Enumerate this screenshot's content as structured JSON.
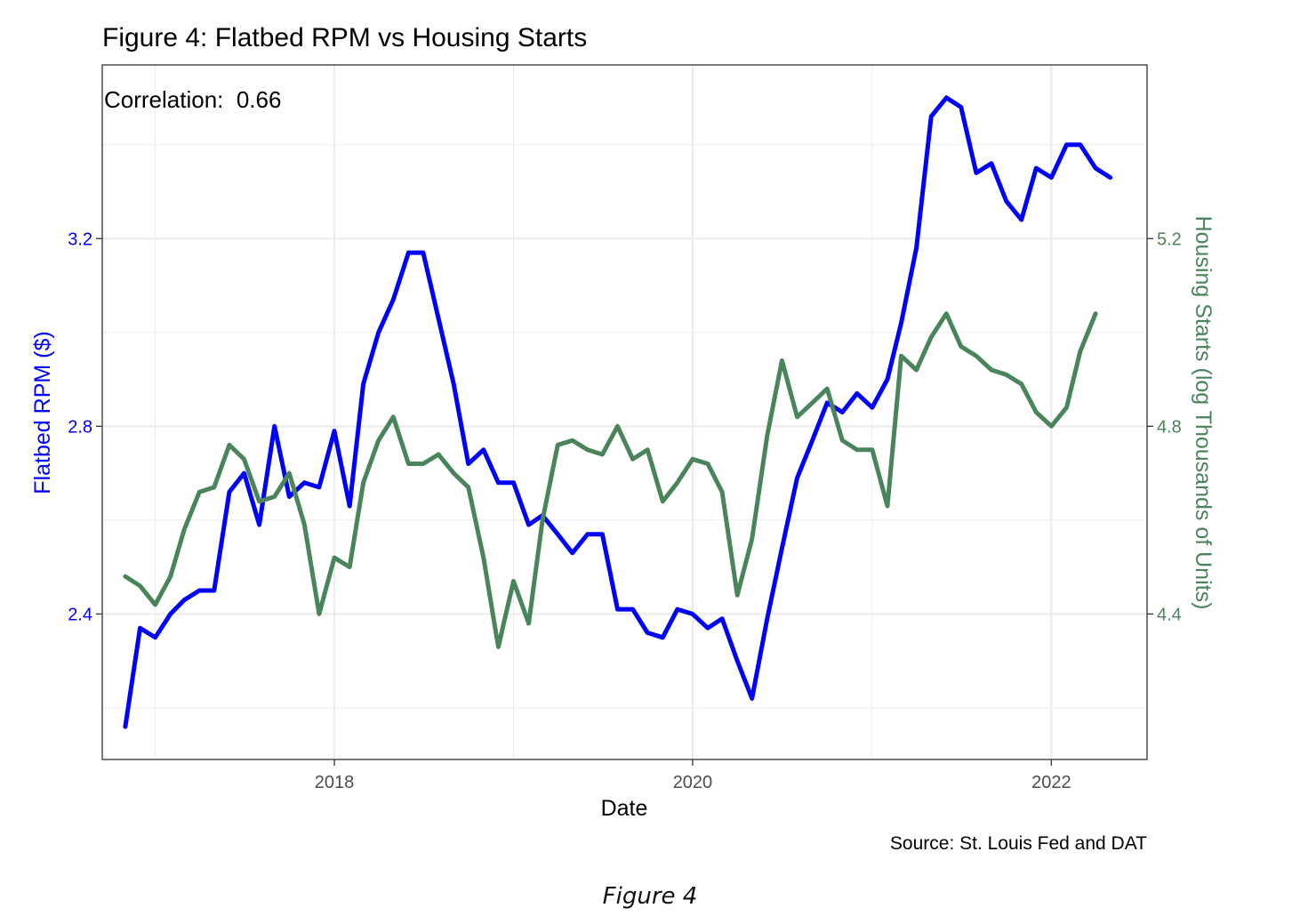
{
  "chart_data": {
    "type": "line",
    "title": "Figure 4: Flatbed RPM vs Housing Starts",
    "annotation": "Correlation:  0.66",
    "xlabel": "Date",
    "ylabel_left": "Flatbed RPM ($)",
    "ylabel_right": "Housing Starts (log Thousands of Units)",
    "source": "Source: St. Louis Fed and DAT",
    "caption": "Figure 4",
    "x_range": [
      "2016-09-15",
      "2022-07-15"
    ],
    "y_left_range": [
      2.09,
      3.57
    ],
    "y_right_range": [
      4.09,
      5.57
    ],
    "x_ticks": [
      {
        "date": "2018-01-01",
        "label": "2018"
      },
      {
        "date": "2020-01-01",
        "label": "2020"
      },
      {
        "date": "2022-01-01",
        "label": "2022"
      }
    ],
    "y_left_ticks": [
      2.4,
      2.8,
      3.2
    ],
    "y_right_ticks": [
      4.4,
      4.8,
      5.2
    ],
    "grid": true,
    "colors": {
      "rpm": "#0000ff",
      "housing": "#4a845b",
      "left_axis": "#0000ff",
      "right_axis": "#4a845b",
      "grid": "#ebebeb"
    },
    "series": [
      {
        "axis": "left",
        "start": "2016-11-01",
        "values": [
          2.16,
          2.37,
          2.35,
          2.4,
          2.43,
          2.45,
          2.45,
          2.66,
          2.7,
          2.59,
          2.8,
          2.65,
          2.68,
          2.67,
          2.79,
          2.63,
          2.89,
          3.0,
          3.07,
          3.17,
          3.17,
          3.03,
          2.89,
          2.72,
          2.75,
          2.68,
          2.68,
          2.59,
          2.61,
          2.57,
          2.53,
          2.57,
          2.57,
          2.41,
          2.41,
          2.36,
          2.35,
          2.41,
          2.4,
          2.37,
          2.39,
          2.3,
          2.22,
          2.39,
          2.54,
          2.69,
          2.77,
          2.85,
          2.83,
          2.87,
          2.84,
          2.9,
          3.02,
          3.18,
          3.46,
          3.5,
          3.48,
          3.34,
          3.36,
          3.28,
          3.24,
          3.35,
          3.33,
          3.4,
          3.4,
          3.35,
          3.33
        ]
      },
      {
        "axis": "right",
        "start": "2016-11-01",
        "values": [
          4.48,
          4.46,
          4.42,
          4.48,
          4.58,
          4.66,
          4.67,
          4.76,
          4.73,
          4.64,
          4.65,
          4.7,
          4.59,
          4.4,
          4.52,
          4.5,
          4.68,
          4.77,
          4.82,
          4.72,
          4.72,
          4.74,
          4.7,
          4.67,
          4.52,
          4.33,
          4.47,
          4.38,
          4.6,
          4.76,
          4.77,
          4.75,
          4.74,
          4.8,
          4.73,
          4.75,
          4.64,
          4.68,
          4.73,
          4.72,
          4.66,
          4.44,
          4.56,
          4.78,
          4.94,
          4.82,
          4.85,
          4.88,
          4.77,
          4.75,
          4.75,
          4.63,
          4.95,
          4.92,
          4.99,
          5.04,
          4.97,
          4.95,
          4.92,
          4.91,
          4.89,
          4.83,
          4.8,
          4.84,
          4.96,
          5.04
        ]
      }
    ]
  }
}
